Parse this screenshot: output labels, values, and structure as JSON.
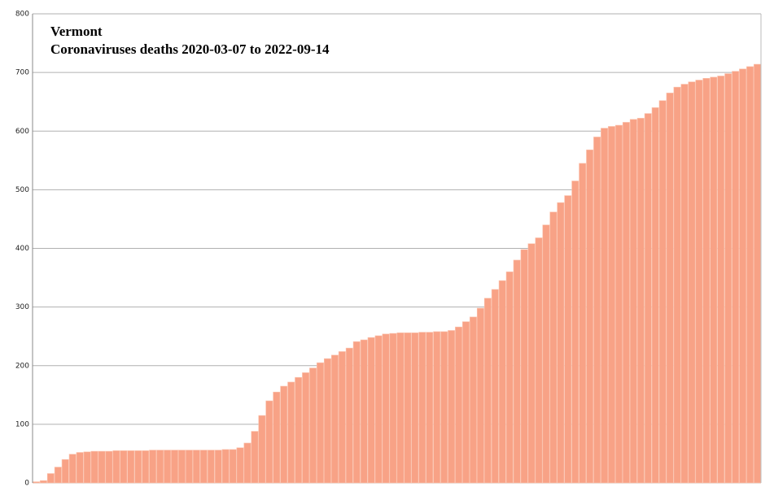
{
  "chart_data": {
    "type": "bar",
    "title": "Vermont",
    "subtitle": "Coronaviruses deaths 2020-03-07 to 2022-09-14",
    "categories": [
      null,
      null,
      null,
      null,
      null,
      null,
      null,
      null,
      null,
      null,
      null,
      null,
      null,
      null,
      null,
      null,
      null,
      null,
      null,
      null,
      null,
      null,
      null,
      null,
      null,
      null,
      null,
      null,
      null,
      null,
      null,
      null,
      null,
      null,
      null,
      null,
      null,
      null,
      null,
      null,
      null,
      null,
      null,
      null,
      null,
      null,
      null,
      null,
      null,
      null,
      null,
      null,
      null,
      null,
      null,
      null,
      null,
      null,
      null,
      null,
      null,
      null,
      null,
      null,
      null,
      null,
      null,
      null,
      null,
      null,
      null,
      null,
      null,
      null,
      null,
      null,
      null,
      null,
      null,
      null,
      null,
      null,
      null,
      null,
      null,
      null,
      null,
      null,
      null,
      null,
      null,
      null,
      null,
      null,
      null,
      null,
      null,
      null,
      null,
      null
    ],
    "values": [
      2,
      4,
      16,
      27,
      40,
      49,
      52,
      53,
      54,
      54,
      54,
      55,
      55,
      55,
      55,
      55,
      56,
      56,
      56,
      56,
      56,
      56,
      56,
      56,
      56,
      56,
      57,
      57,
      60,
      68,
      88,
      115,
      140,
      155,
      165,
      172,
      180,
      188,
      196,
      205,
      212,
      218,
      224,
      230,
      241,
      244,
      248,
      251,
      254,
      255,
      256,
      256,
      256,
      257,
      257,
      258,
      258,
      260,
      266,
      275,
      283,
      298,
      315,
      330,
      345,
      360,
      380,
      398,
      408,
      418,
      440,
      462,
      478,
      490,
      515,
      545,
      568,
      590,
      605,
      608,
      610,
      615,
      620,
      622,
      630,
      640,
      652,
      665,
      675,
      680,
      684,
      687,
      690,
      692,
      694,
      698,
      702,
      706,
      710,
      714
    ],
    "color": "#f8a286",
    "ylim": [
      0,
      800
    ],
    "yticks": [
      0,
      100,
      200,
      300,
      400,
      500,
      600,
      700,
      800
    ],
    "grid": true
  }
}
